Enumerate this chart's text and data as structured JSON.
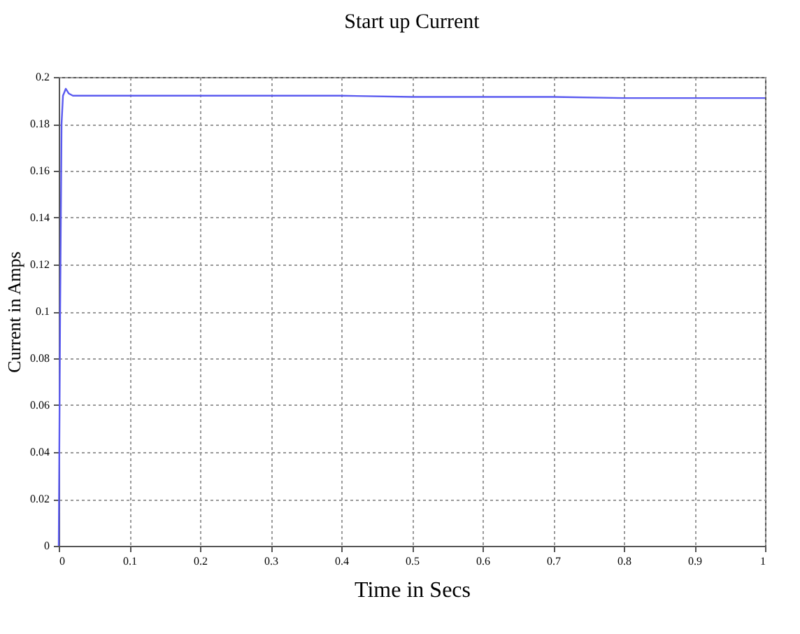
{
  "chart_data": {
    "type": "line",
    "title": "Start up Current",
    "xlabel": "Time in Secs",
    "ylabel": "Current in Amps",
    "x": [
      0,
      0.002,
      0.004,
      0.006,
      0.01,
      0.014,
      0.02,
      0.05,
      0.1,
      0.2,
      0.3,
      0.4,
      0.5,
      0.6,
      0.7,
      0.8,
      0.9,
      1
    ],
    "series": [
      {
        "color": "#5b5bf0",
        "values": [
          0,
          0.1,
          0.18,
          0.192,
          0.195,
          0.193,
          0.192,
          0.192,
          0.192,
          0.192,
          0.192,
          0.192,
          0.1915,
          0.1915,
          0.1915,
          0.191,
          0.191,
          0.191
        ]
      }
    ],
    "xlim": [
      0,
      1
    ],
    "xticks": [
      0,
      0.1,
      0.2,
      0.3,
      0.4,
      0.5,
      0.6,
      0.7,
      0.8,
      0.9,
      1
    ],
    "ylim": [
      0,
      0.2
    ],
    "yticks": [
      0,
      0.02,
      0.04,
      0.06,
      0.08,
      0.1,
      0.12,
      0.14,
      0.16,
      0.18,
      0.2
    ],
    "grid": true,
    "marker": "none",
    "line_style": "solid"
  }
}
